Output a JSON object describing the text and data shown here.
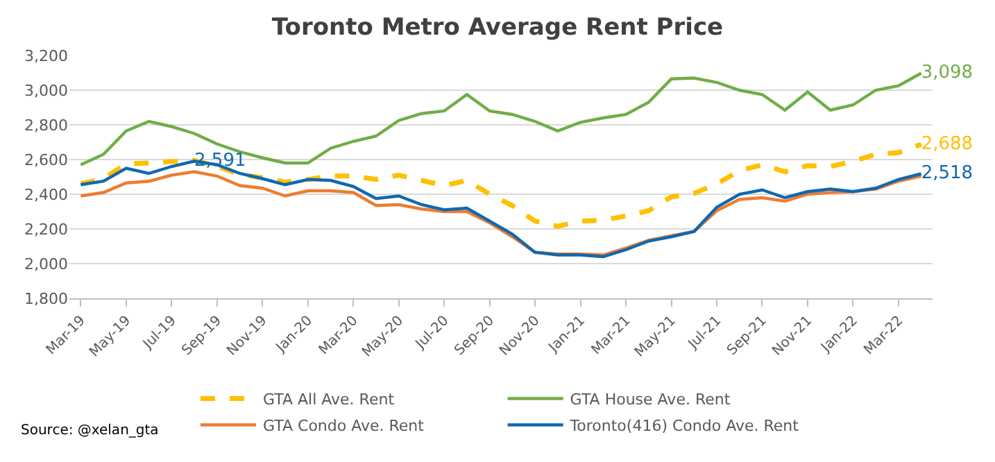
{
  "chart_data": {
    "type": "line",
    "title": "Toronto Metro Average Rent Price",
    "categories": [
      "Mar-19",
      null,
      "May-19",
      null,
      "Jul-19",
      null,
      "Sep-19",
      null,
      "Nov-19",
      null,
      "Jan-20",
      null,
      "Mar-20",
      null,
      "May-20",
      null,
      "Jul-20",
      null,
      "Sep-20",
      null,
      "Nov-20",
      null,
      "Jan-21",
      null,
      "Mar-21",
      null,
      "May-21",
      null,
      "Jul-21",
      null,
      "Sep-21",
      null,
      "Nov-21",
      null,
      "Jan-22",
      null,
      "Mar-22",
      null
    ],
    "ylim": [
      1800,
      3200
    ],
    "yticks": [
      {
        "value": 1800,
        "label": "1,800"
      },
      {
        "value": 2000,
        "label": "2,000"
      },
      {
        "value": 2200,
        "label": "2,200"
      },
      {
        "value": 2400,
        "label": "2,400"
      },
      {
        "value": 2600,
        "label": "2,600"
      },
      {
        "value": 2800,
        "label": "2,800"
      },
      {
        "value": 3000,
        "label": "3,000"
      },
      {
        "value": 3200,
        "label": "3,200"
      }
    ],
    "grid": "y",
    "legend": "bottom",
    "marker": "none",
    "series": [
      {
        "name": "GTA All Ave. Rent",
        "color": "#ffc000",
        "line_style": "dashed",
        "values": [
          2460,
          2490,
          2575,
          2580,
          2588,
          2595,
          2560,
          2515,
          2495,
          2470,
          2485,
          2505,
          2505,
          2485,
          2510,
          2480,
          2450,
          2480,
          2400,
          2335,
          2245,
          2215,
          2245,
          2250,
          2275,
          2305,
          2385,
          2405,
          2460,
          2535,
          2570,
          2530,
          2565,
          2560,
          2590,
          2630,
          2640,
          2688
        ],
        "value_labels": [
          null,
          null,
          null,
          null,
          null,
          null,
          null,
          null,
          null,
          null,
          null,
          null,
          null,
          null,
          null,
          null,
          null,
          null,
          null,
          null,
          null,
          null,
          null,
          null,
          null,
          null,
          null,
          null,
          null,
          null,
          null,
          null,
          null,
          null,
          null,
          null,
          null,
          "2,688"
        ]
      },
      {
        "name": "GTA House Ave. Rent",
        "color": "#70ad47",
        "values": [
          2570,
          2630,
          2765,
          2820,
          2790,
          2750,
          2690,
          2645,
          2610,
          2580,
          2580,
          2665,
          2705,
          2735,
          2825,
          2865,
          2880,
          2975,
          2880,
          2860,
          2820,
          2765,
          2815,
          2840,
          2860,
          2930,
          3065,
          3070,
          3045,
          3000,
          2975,
          2885,
          2990,
          2885,
          2915,
          3000,
          3025,
          3098
        ],
        "value_labels": [
          null,
          null,
          null,
          null,
          null,
          null,
          null,
          null,
          null,
          null,
          null,
          null,
          null,
          null,
          null,
          null,
          null,
          null,
          null,
          null,
          null,
          null,
          null,
          null,
          null,
          null,
          null,
          null,
          null,
          null,
          null,
          null,
          null,
          null,
          null,
          null,
          null,
          "3,098"
        ]
      },
      {
        "name": "GTA Condo Ave. Rent",
        "color": "#ed7d31",
        "values": [
          2390,
          2410,
          2465,
          2475,
          2510,
          2530,
          2505,
          2450,
          2435,
          2390,
          2420,
          2420,
          2410,
          2335,
          2340,
          2315,
          2300,
          2300,
          2235,
          2155,
          2065,
          2055,
          2055,
          2050,
          2090,
          2135,
          2160,
          2185,
          2305,
          2370,
          2380,
          2360,
          2400,
          2410,
          2415,
          2430,
          2475,
          2505
        ]
      },
      {
        "name": "Toronto(416) Condo Ave. Rent",
        "color": "#1068b0",
        "values": [
          2455,
          2475,
          2550,
          2520,
          2560,
          2591,
          2570,
          2520,
          2490,
          2455,
          2485,
          2480,
          2445,
          2375,
          2390,
          2340,
          2310,
          2320,
          2245,
          2170,
          2065,
          2050,
          2050,
          2040,
          2080,
          2130,
          2155,
          2185,
          2325,
          2400,
          2425,
          2380,
          2415,
          2430,
          2415,
          2435,
          2485,
          2518
        ],
        "value_labels": [
          null,
          null,
          null,
          null,
          null,
          "2,591",
          null,
          null,
          null,
          null,
          null,
          null,
          null,
          null,
          null,
          null,
          null,
          null,
          null,
          null,
          null,
          null,
          null,
          null,
          null,
          null,
          null,
          null,
          null,
          null,
          null,
          null,
          null,
          null,
          null,
          null,
          null,
          "2,518"
        ]
      }
    ],
    "annotations": [
      "Source: @xelan_gta"
    ]
  }
}
